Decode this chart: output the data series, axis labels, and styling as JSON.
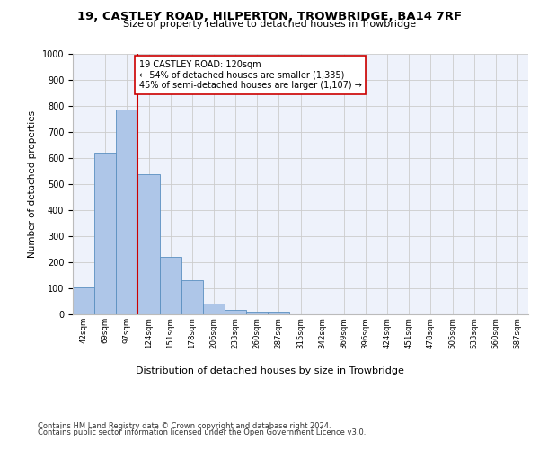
{
  "title1": "19, CASTLEY ROAD, HILPERTON, TROWBRIDGE, BA14 7RF",
  "title2": "Size of property relative to detached houses in Trowbridge",
  "xlabel": "Distribution of detached houses by size in Trowbridge",
  "ylabel": "Number of detached properties",
  "bar_labels": [
    "42sqm",
    "69sqm",
    "97sqm",
    "124sqm",
    "151sqm",
    "178sqm",
    "206sqm",
    "233sqm",
    "260sqm",
    "287sqm",
    "315sqm",
    "342sqm",
    "369sqm",
    "396sqm",
    "424sqm",
    "451sqm",
    "478sqm",
    "505sqm",
    "533sqm",
    "560sqm",
    "587sqm"
  ],
  "bar_heights": [
    103,
    622,
    785,
    538,
    221,
    132,
    43,
    17,
    10,
    11,
    0,
    0,
    0,
    0,
    0,
    0,
    0,
    0,
    0,
    0,
    0
  ],
  "bar_color": "#aec6e8",
  "bar_edge_color": "#5a8fc0",
  "vline_color": "#cc0000",
  "annotation_text": "19 CASTLEY ROAD: 120sqm\n← 54% of detached houses are smaller (1,335)\n45% of semi-detached houses are larger (1,107) →",
  "annotation_box_color": "#ffffff",
  "annotation_box_edge": "#cc0000",
  "ylim": [
    0,
    1000
  ],
  "yticks": [
    0,
    100,
    200,
    300,
    400,
    500,
    600,
    700,
    800,
    900,
    1000
  ],
  "grid_color": "#cccccc",
  "bg_color": "#eef2fb",
  "footer1": "Contains HM Land Registry data © Crown copyright and database right 2024.",
  "footer2": "Contains public sector information licensed under the Open Government Licence v3.0."
}
